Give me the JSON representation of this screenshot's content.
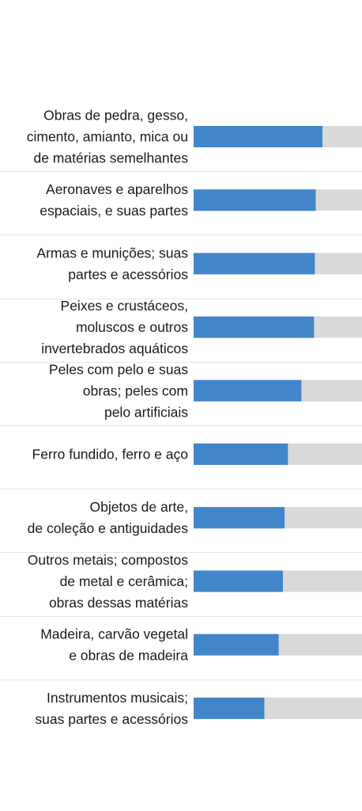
{
  "chart_data": {
    "type": "bar",
    "orientation": "horizontal",
    "categories": [
      "Obras de pedra, gesso, cimento, amianto, mica ou de matérias semelhantes",
      "Aeronaves e aparelhos espaciais, e suas partes",
      "Armas e munições; suas partes e acessórios",
      "Peixes e crustáceos, moluscos e outros invertebrados aquáticos",
      "Peles com pelo e suas obras; peles com pelo artificiais",
      "Ferro fundido, ferro e aço",
      "Objetos de arte, de coleção e antiguidades",
      "Outros metais; compostos de metal e cerâmica; obras dessas matérias",
      "Madeira, carvão vegetal e obras de madeira",
      "Instrumentos musicais; suas partes e acessórios"
    ],
    "category_lines": [
      [
        "Obras de pedra, gesso,",
        "cimento, amianto, mica ou",
        "de matérias semelhantes"
      ],
      [
        "Aeronaves e aparelhos",
        "espaciais, e suas partes"
      ],
      [
        "Armas e munições; suas",
        "partes e acessórios"
      ],
      [
        "Peixes e crustáceos,",
        "moluscos e outros",
        "invertebrados aquáticos"
      ],
      [
        "Peles com pelo e suas",
        "obras; peles com",
        "pelo artificiais"
      ],
      [
        "Ferro fundido, ferro e aço"
      ],
      [
        "Objetos de arte,",
        "de coleção e antiguidades"
      ],
      [
        "Outros metais; compostos",
        "de metal e cerâmica;",
        "obras dessas matérias"
      ],
      [
        "Madeira, carvão vegetal",
        "e obras de madeira"
      ],
      [
        "Instrumentos musicais;",
        "suas partes e acessórios"
      ]
    ],
    "values": [
      76.5,
      72.5,
      72,
      71.5,
      64,
      56,
      54,
      53,
      50.5,
      42
    ],
    "xlim": [
      0,
      100
    ],
    "title": "",
    "xlabel": "",
    "ylabel": "",
    "grid": false,
    "legend": "none",
    "colors": {
      "bar": "#4285c9",
      "track": "#d9d9d9",
      "separator": "#e6e6e6",
      "label": "#1a1a1a"
    }
  }
}
